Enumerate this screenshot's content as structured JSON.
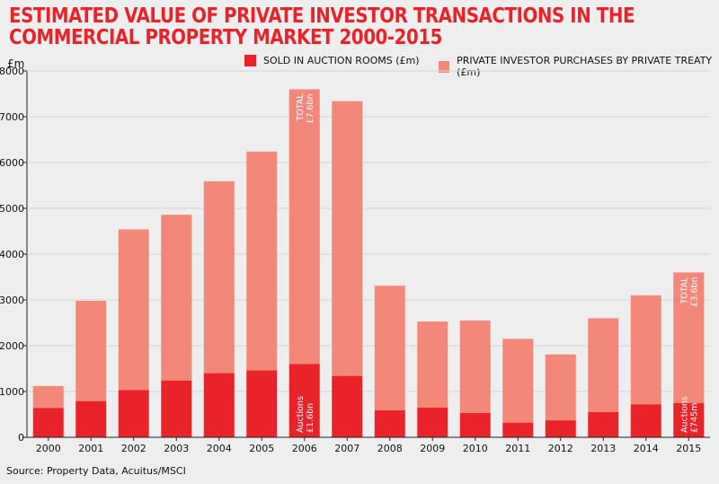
{
  "title_line1": "ESTIMATED VALUE OF PRIVATE INVESTOR TRANSACTIONS IN THE",
  "title_line2": "COMMERCIAL PROPERTY MARKET 2000-2015",
  "source": "Source: Property Data, Acuitus/MSCI",
  "colors": {
    "auction": "#e8232a",
    "treaty": "#f3877a",
    "title": "#e8232a",
    "background": "#eeeeef"
  },
  "chart_data": {
    "type": "bar",
    "stacked": true,
    "title": "ESTIMATED VALUE OF PRIVATE INVESTOR TRANSACTIONS IN THE COMMERCIAL PROPERTY MARKET 2000-2015",
    "ylabel": "£m",
    "ylim": [
      0,
      8000
    ],
    "yticks": [
      0,
      1000,
      2000,
      3000,
      4000,
      5000,
      6000,
      7000,
      8000
    ],
    "grid": true,
    "legend_position": "top",
    "categories": [
      "2000",
      "2001",
      "2002",
      "2003",
      "2004",
      "2005",
      "2006",
      "2007",
      "2008",
      "2009",
      "2010",
      "2011",
      "2012",
      "2013",
      "2014",
      "2015"
    ],
    "series": [
      {
        "name": "SOLD IN AUCTION ROOMS (£m)",
        "values": [
          640,
          790,
          1030,
          1240,
          1400,
          1460,
          1600,
          1340,
          590,
          650,
          530,
          320,
          370,
          550,
          720,
          745
        ]
      },
      {
        "name": "PRIVATE INVESTOR PURCHASES BY PRIVATE TREATY (£m)",
        "values": [
          480,
          2190,
          3510,
          3620,
          4190,
          4780,
          6000,
          6000,
          2720,
          1880,
          2020,
          1830,
          1440,
          2050,
          2380,
          2855
        ]
      }
    ],
    "annotations": [
      {
        "category": "2006",
        "position": "top",
        "line1": "TOTAL",
        "line2": "£7.6bn"
      },
      {
        "category": "2006",
        "position": "bottom",
        "line1": "Auctions",
        "line2": "£1.6bn"
      },
      {
        "category": "2015",
        "position": "top",
        "line1": "TOTAL",
        "line2": "£3.6bn"
      },
      {
        "category": "2015",
        "position": "bottom",
        "line1": "Auctions",
        "line2": "£745m"
      }
    ]
  }
}
